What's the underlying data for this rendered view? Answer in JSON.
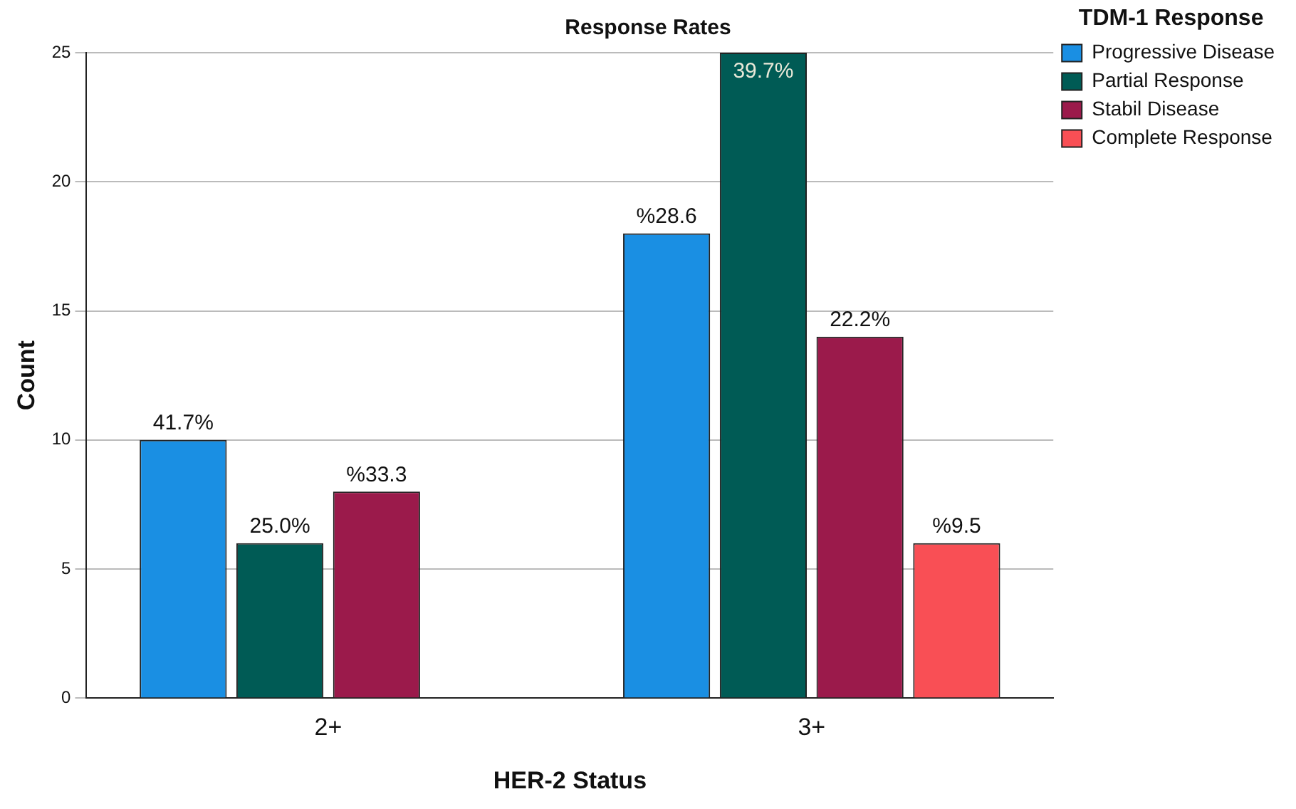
{
  "chart_data": {
    "type": "bar",
    "title": "Response Rates",
    "xlabel": "HER-2 Status",
    "ylabel": "Count",
    "legend_title": "TDM-1 Response",
    "categories": [
      "2+",
      "3+"
    ],
    "series": [
      {
        "name": "Progressive Disease",
        "color": "#1a8fe3",
        "values": [
          10,
          18
        ]
      },
      {
        "name": "Partial Response",
        "color": "#005b55",
        "values": [
          6,
          25
        ]
      },
      {
        "name": "Stabil Disease",
        "color": "#9b1a4b",
        "values": [
          8,
          14
        ]
      },
      {
        "name": "Complete Response",
        "color": "#f94f55",
        "values": [
          null,
          6
        ]
      }
    ],
    "annotations": [
      "41.7%",
      "25.0%",
      "%33.3",
      "%28.6",
      "39.7%",
      "22.2%",
      "%9.5"
    ],
    "ylim": [
      0,
      25
    ],
    "yticks": [
      0,
      5,
      10,
      15,
      20,
      25
    ],
    "grid": "y",
    "legend": "top right"
  }
}
